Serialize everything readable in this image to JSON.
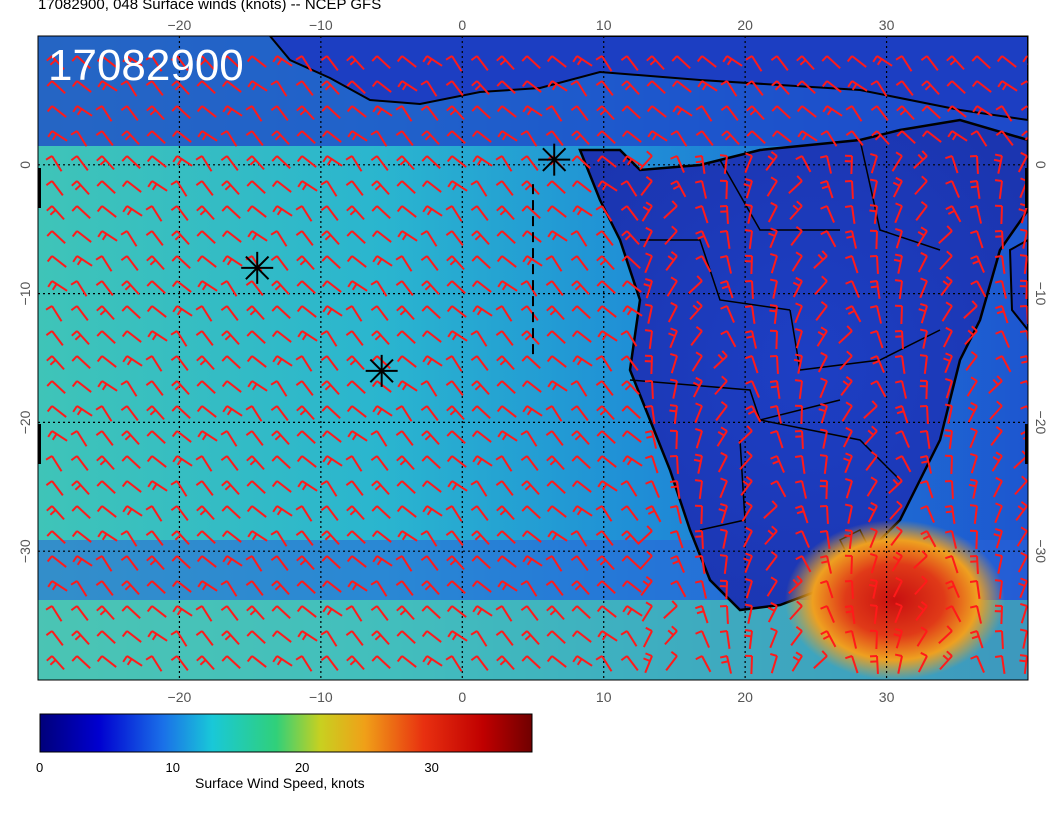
{
  "title": "17082900, 048 Surface winds (knots) -- NCEP GFS",
  "overlay_label": "17082900",
  "map": {
    "lon_range": [
      -30,
      40
    ],
    "lat_range": [
      -40,
      10
    ],
    "lon_ticks": [
      {
        "value": -20,
        "label": "−20"
      },
      {
        "value": -10,
        "label": "−10"
      },
      {
        "value": 0,
        "label": "0"
      },
      {
        "value": 10,
        "label": "10"
      },
      {
        "value": 20,
        "label": "20"
      },
      {
        "value": 30,
        "label": "30"
      }
    ],
    "lat_ticks": [
      {
        "value": 0,
        "label": "0"
      },
      {
        "value": -10,
        "label": "−10"
      },
      {
        "value": -20,
        "label": "−20"
      },
      {
        "value": -30,
        "label": "−30"
      }
    ],
    "markers": [
      {
        "lon": 6.5,
        "lat": 0.4
      },
      {
        "lon": -14.5,
        "lat": -8
      },
      {
        "lon": -5.7,
        "lat": -16
      }
    ],
    "dashed_path": [
      [
        5,
        -1.5
      ],
      [
        5,
        -15
      ]
    ],
    "colors": {
      "land_line": "#000000",
      "barb": "#ff1a1a",
      "ocean_low": "#1f4fd6",
      "ocean_mid": "#27b3d0",
      "high": "#d81414"
    }
  },
  "colorbar": {
    "min": 0,
    "max": 38,
    "ticks": [
      {
        "value": 0,
        "label": "0"
      },
      {
        "value": 10,
        "label": "10"
      },
      {
        "value": 20,
        "label": "20"
      },
      {
        "value": 30,
        "label": "30"
      }
    ],
    "label": "Surface Wind Speed, knots"
  }
}
